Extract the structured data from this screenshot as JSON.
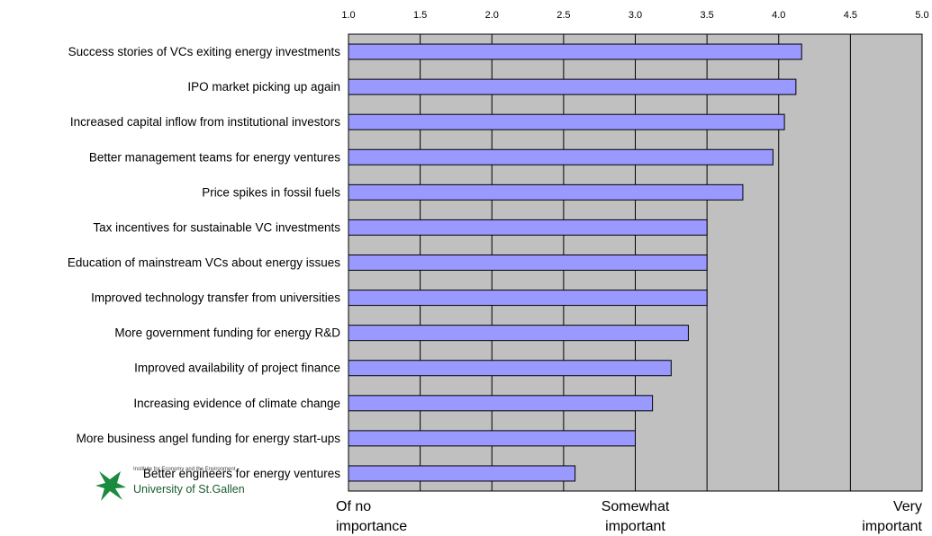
{
  "chart_data": {
    "type": "bar",
    "orientation": "horizontal",
    "categories": [
      "Success stories of VCs exiting energy investments",
      "IPO market picking up again",
      "Increased capital inflow from institutional investors",
      "Better management teams for energy ventures",
      "Price spikes in fossil fuels",
      "Tax incentives for sustainable VC investments",
      "Education of mainstream VCs about energy issues",
      "Improved technology transfer from universities",
      "More government funding for energy R&D",
      "Improved availability of project finance ",
      "Increasing evidence of climate change",
      "More business angel funding for energy start-ups",
      "Better engineers for energy ventures"
    ],
    "values": [
      4.16,
      4.12,
      4.04,
      3.96,
      3.75,
      3.5,
      3.5,
      3.5,
      3.37,
      3.25,
      3.12,
      3.0,
      2.58
    ],
    "xlim": [
      1.0,
      5.0
    ],
    "x_ticks": [
      "1.0",
      "1.5",
      "2.0",
      "2.5",
      "3.0",
      "3.5",
      "4.0",
      "4.5",
      "5.0"
    ],
    "tick_values": [
      1.0,
      1.5,
      2.0,
      2.5,
      3.0,
      3.5,
      4.0,
      4.5,
      5.0
    ],
    "gridlines": true,
    "bar_color": "#9999ff",
    "background_color": "#c0c0c0",
    "scale_anchors": [
      {
        "lines": [
          "Of no",
          "importance"
        ],
        "position": 1.0
      },
      {
        "lines": [
          "Somewhat",
          "important"
        ],
        "position": 3.0
      },
      {
        "lines": [
          "Very",
          "important"
        ],
        "position": 5.0
      }
    ]
  },
  "logo": {
    "name": "University of St.Gallen",
    "subtitle": "Institute for Economy and the Environment"
  }
}
